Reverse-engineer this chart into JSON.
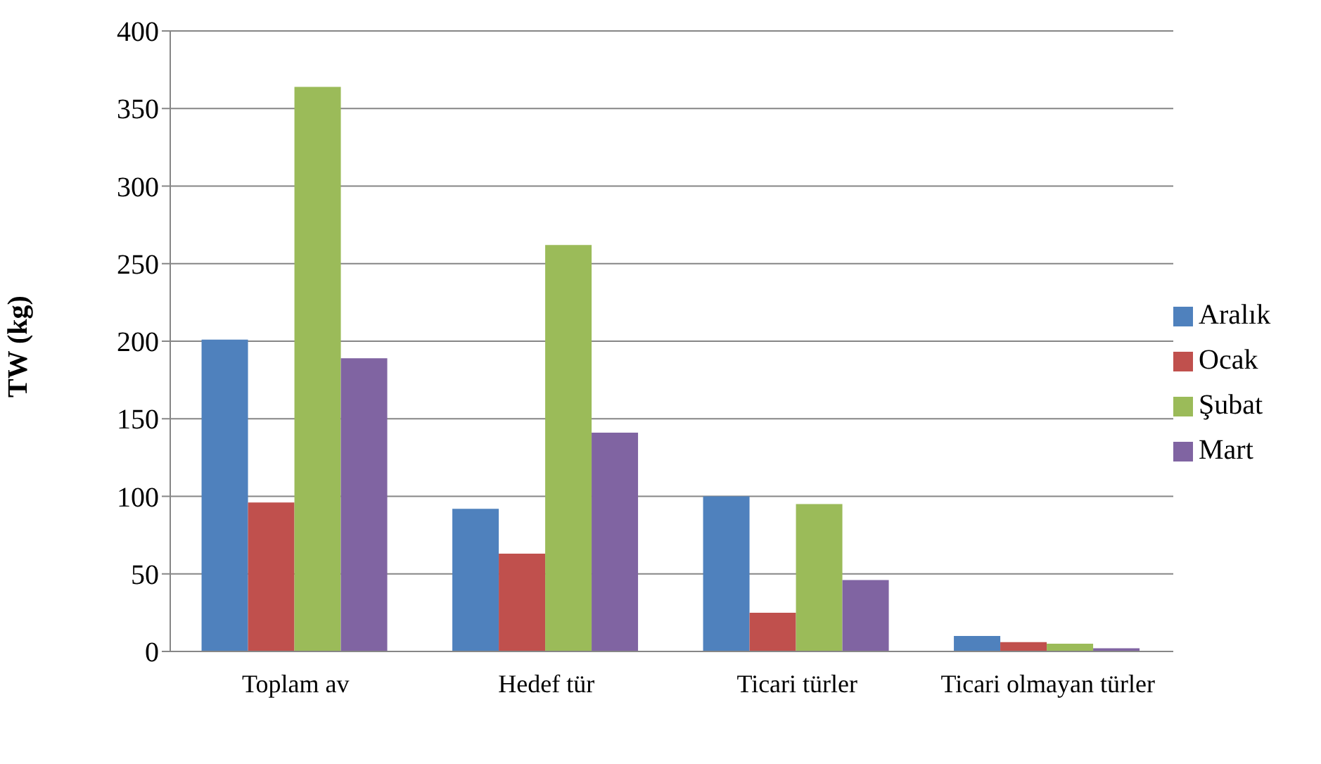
{
  "chart_data": {
    "type": "bar",
    "ylabel": "TW (kg)",
    "categories": [
      "Toplam av",
      "Hedef tür",
      "Ticari türler",
      "Ticari olmayan türler"
    ],
    "series": [
      {
        "name": "Aralık",
        "color": "#4f81bd",
        "values": [
          201,
          92,
          100,
          10
        ]
      },
      {
        "name": "Ocak",
        "color": "#c0504d",
        "values": [
          96,
          63,
          25,
          6
        ]
      },
      {
        "name": "Şubat",
        "color": "#9bbb59",
        "values": [
          364,
          262,
          95,
          5
        ]
      },
      {
        "name": "Mart",
        "color": "#8064a2",
        "values": [
          189,
          141,
          46,
          2
        ]
      }
    ],
    "ylim": [
      0,
      400
    ],
    "yticks": [
      0,
      50,
      100,
      150,
      200,
      250,
      300,
      350,
      400
    ],
    "grid": "y",
    "legend": "right"
  }
}
